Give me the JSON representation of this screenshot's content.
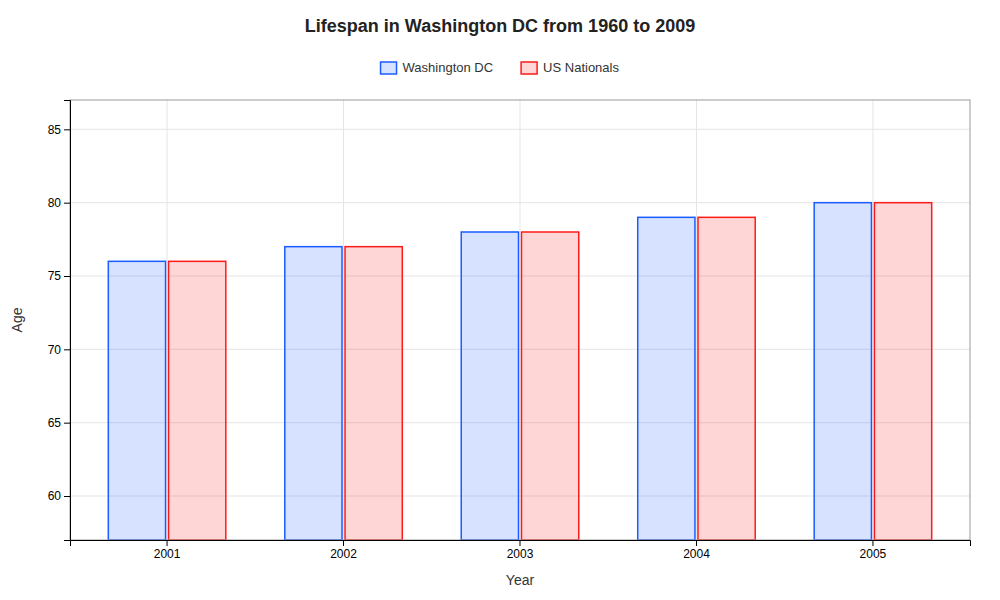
{
  "chart_data": {
    "type": "bar",
    "title": "Lifespan in Washington DC from 1960 to 2009",
    "xlabel": "Year",
    "ylabel": "Age",
    "categories": [
      "2001",
      "2002",
      "2003",
      "2004",
      "2005"
    ],
    "series": [
      {
        "name": "Washington DC",
        "color": "#1a5cff",
        "values": [
          76,
          77,
          78,
          79,
          80
        ]
      },
      {
        "name": "US Nationals",
        "color": "#ff1a1a",
        "values": [
          76,
          77,
          78,
          79,
          80
        ]
      }
    ],
    "ylim": [
      57,
      87
    ],
    "yticks": [
      60,
      65,
      70,
      75,
      80,
      85
    ],
    "grid": true,
    "legend": "top"
  }
}
